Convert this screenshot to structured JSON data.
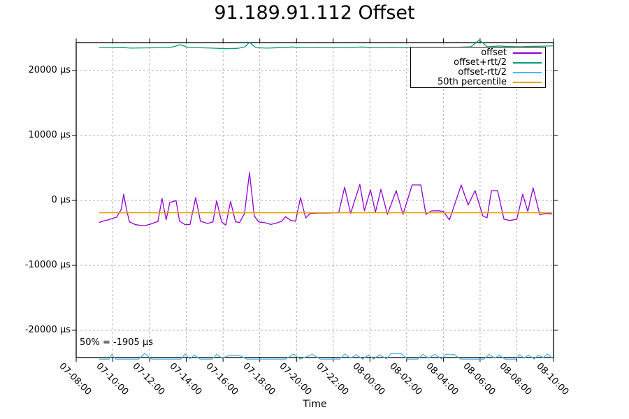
{
  "chart": {
    "title": "91.189.91.112 Offset",
    "xlabel": "Time",
    "annotation": "50% = -1905 µs"
  },
  "chart_data": {
    "type": "line",
    "title": "91.189.91.112 Offset",
    "xlabel": "Time",
    "ylabel": "",
    "grid": true,
    "legend_position": "top-right",
    "annotation": {
      "text": "50% = -1905 µs",
      "value_us": -1905
    },
    "x_axis": {
      "unit": "time (MM-DD HH:MM)",
      "tick_labels": [
        "07-08:00",
        "07-10:00",
        "07-12:00",
        "07-14:00",
        "07-16:00",
        "07-18:00",
        "07-20:00",
        "07-22:00",
        "08-00:00",
        "08-02:00",
        "08-04:00",
        "08-06:00",
        "08-08:00",
        "08-10:00"
      ],
      "tick_hours": [
        0,
        2,
        4,
        6,
        8,
        10,
        12,
        14,
        16,
        18,
        20,
        22,
        24,
        26
      ],
      "range_hours": [
        0,
        26
      ]
    },
    "y_axis": {
      "unit": "µs",
      "tick_labels": [
        "-20000 µs",
        "-10000 µs",
        "0 µs",
        "10000 µs",
        "20000 µs"
      ],
      "tick_values": [
        -20000,
        -10000,
        0,
        10000,
        20000
      ],
      "range": [
        -24200,
        24300
      ]
    },
    "series": [
      {
        "name": "offset",
        "color": "#9400d3",
        "points": [
          [
            1.25,
            -3400
          ],
          [
            1.5,
            -3150
          ],
          [
            1.75,
            -3000
          ],
          [
            2.0,
            -2750
          ],
          [
            2.2,
            -2600
          ],
          [
            2.45,
            -1400
          ],
          [
            2.59,
            950
          ],
          [
            2.75,
            -1500
          ],
          [
            2.9,
            -3300
          ],
          [
            3.2,
            -3700
          ],
          [
            3.5,
            -3850
          ],
          [
            3.75,
            -3870
          ],
          [
            4.0,
            -3700
          ],
          [
            4.2,
            -3500
          ],
          [
            4.45,
            -3250
          ],
          [
            4.68,
            300
          ],
          [
            4.9,
            -3000
          ],
          [
            5.1,
            -300
          ],
          [
            5.44,
            -50
          ],
          [
            5.63,
            -3200
          ],
          [
            5.94,
            -3750
          ],
          [
            6.2,
            -3700
          ],
          [
            6.51,
            430
          ],
          [
            6.77,
            -3200
          ],
          [
            7.16,
            -3550
          ],
          [
            7.45,
            -3300
          ],
          [
            7.65,
            -50
          ],
          [
            7.92,
            -3300
          ],
          [
            8.15,
            -3800
          ],
          [
            8.41,
            -150
          ],
          [
            8.68,
            -3300
          ],
          [
            8.9,
            -3400
          ],
          [
            9.17,
            -2000
          ],
          [
            9.44,
            4300
          ],
          [
            9.7,
            -2400
          ],
          [
            9.94,
            -3300
          ],
          [
            10.3,
            -3450
          ],
          [
            10.6,
            -3700
          ],
          [
            10.9,
            -3500
          ],
          [
            11.2,
            -3200
          ],
          [
            11.4,
            -2500
          ],
          [
            11.7,
            -3100
          ],
          [
            11.95,
            -3200
          ],
          [
            12.22,
            430
          ],
          [
            12.5,
            -2700
          ],
          [
            12.75,
            -2000
          ],
          [
            13.2,
            -1950
          ],
          [
            13.7,
            -1950
          ],
          [
            14.3,
            -1900
          ],
          [
            14.62,
            2040
          ],
          [
            14.95,
            -2000
          ],
          [
            15.45,
            2470
          ],
          [
            15.7,
            -1600
          ],
          [
            16.03,
            1610
          ],
          [
            16.3,
            -1800
          ],
          [
            16.6,
            1720
          ],
          [
            16.95,
            -2150
          ],
          [
            17.43,
            1500
          ],
          [
            17.8,
            -2150
          ],
          [
            18.3,
            2370
          ],
          [
            18.77,
            2370
          ],
          [
            19.05,
            -2150
          ],
          [
            19.35,
            -1620
          ],
          [
            19.75,
            -1600
          ],
          [
            20.0,
            -1700
          ],
          [
            20.33,
            -3000
          ],
          [
            20.97,
            2370
          ],
          [
            21.35,
            -700
          ],
          [
            21.73,
            1500
          ],
          [
            22.15,
            -2400
          ],
          [
            22.38,
            -2680
          ],
          [
            22.62,
            1500
          ],
          [
            22.95,
            1500
          ],
          [
            23.3,
            -2900
          ],
          [
            23.6,
            -3100
          ],
          [
            24.0,
            -2900
          ],
          [
            24.32,
            950
          ],
          [
            24.6,
            -1700
          ],
          [
            24.89,
            1930
          ],
          [
            25.25,
            -2200
          ],
          [
            25.6,
            -2000
          ],
          [
            25.93,
            -2100
          ]
        ]
      },
      {
        "name": "offset+rtt/2",
        "color": "#009e73",
        "points": [
          [
            1.25,
            23500
          ],
          [
            2.0,
            23500
          ],
          [
            2.6,
            23530
          ],
          [
            3.0,
            23450
          ],
          [
            3.6,
            23480
          ],
          [
            4.3,
            23500
          ],
          [
            5.0,
            23520
          ],
          [
            5.35,
            23700
          ],
          [
            5.67,
            23980
          ],
          [
            6.1,
            23550
          ],
          [
            6.8,
            23500
          ],
          [
            7.4,
            23450
          ],
          [
            8.1,
            23360
          ],
          [
            8.8,
            23420
          ],
          [
            9.2,
            23650
          ],
          [
            9.44,
            24340
          ],
          [
            9.8,
            23500
          ],
          [
            10.4,
            23450
          ],
          [
            11.0,
            23520
          ],
          [
            11.8,
            23620
          ],
          [
            12.4,
            23500
          ],
          [
            13.2,
            23560
          ],
          [
            14.0,
            23500
          ],
          [
            14.8,
            23560
          ],
          [
            15.6,
            23620
          ],
          [
            16.4,
            23500
          ],
          [
            17.2,
            23560
          ],
          [
            18.0,
            23500
          ],
          [
            18.8,
            23560
          ],
          [
            19.6,
            23500
          ],
          [
            20.6,
            23560
          ],
          [
            21.5,
            23650
          ],
          [
            21.96,
            24700
          ],
          [
            22.4,
            23650
          ],
          [
            23.0,
            23770
          ],
          [
            23.6,
            23700
          ],
          [
            24.2,
            23660
          ],
          [
            24.8,
            23720
          ],
          [
            25.4,
            23750
          ],
          [
            26.0,
            23800
          ]
        ]
      },
      {
        "name": "offset-rtt/2",
        "color": "#56b4e9",
        "points": [
          [
            1.25,
            -24450
          ],
          [
            1.8,
            -24450
          ],
          [
            1.94,
            -23700
          ],
          [
            2.15,
            -24450
          ],
          [
            3.4,
            -24450
          ],
          [
            3.73,
            -23550
          ],
          [
            4.1,
            -24450
          ],
          [
            5.7,
            -24450
          ],
          [
            5.94,
            -23650
          ],
          [
            6.2,
            -24400
          ],
          [
            6.43,
            -23800
          ],
          [
            6.75,
            -24450
          ],
          [
            7.4,
            -24450
          ],
          [
            7.65,
            -23700
          ],
          [
            7.95,
            -24300
          ],
          [
            8.3,
            -23900
          ],
          [
            8.9,
            -23900
          ],
          [
            9.3,
            -24450
          ],
          [
            11.4,
            -24450
          ],
          [
            11.84,
            -23650
          ],
          [
            12.2,
            -24450
          ],
          [
            12.87,
            -23700
          ],
          [
            13.3,
            -24450
          ],
          [
            14.35,
            -24450
          ],
          [
            14.62,
            -23650
          ],
          [
            14.95,
            -24300
          ],
          [
            15.26,
            -23750
          ],
          [
            15.6,
            -24450
          ],
          [
            15.92,
            -23800
          ],
          [
            16.2,
            -24450
          ],
          [
            16.52,
            -23750
          ],
          [
            16.9,
            -24400
          ],
          [
            17.15,
            -23600
          ],
          [
            17.7,
            -23600
          ],
          [
            18.05,
            -24450
          ],
          [
            18.6,
            -24450
          ],
          [
            18.88,
            -23700
          ],
          [
            19.2,
            -24300
          ],
          [
            19.53,
            -23700
          ],
          [
            19.9,
            -24400
          ],
          [
            20.15,
            -23700
          ],
          [
            20.6,
            -23750
          ],
          [
            20.95,
            -24450
          ],
          [
            22.2,
            -24450
          ],
          [
            22.5,
            -23700
          ],
          [
            22.8,
            -24300
          ],
          [
            23.05,
            -23800
          ],
          [
            23.35,
            -24450
          ],
          [
            23.95,
            -24450
          ],
          [
            24.15,
            -23750
          ],
          [
            24.4,
            -24300
          ],
          [
            24.65,
            -23800
          ],
          [
            24.95,
            -24450
          ],
          [
            25.16,
            -23800
          ],
          [
            25.45,
            -24200
          ],
          [
            25.66,
            -23650
          ],
          [
            26.0,
            -24400
          ]
        ]
      },
      {
        "name": "50th percentile",
        "color": "#e69f00",
        "points": [
          [
            1.26,
            -1905
          ],
          [
            25.93,
            -1905
          ]
        ]
      }
    ],
    "colors": {
      "border": "#000000",
      "grid": "#b0b0b0",
      "background": "#ffffff"
    }
  }
}
